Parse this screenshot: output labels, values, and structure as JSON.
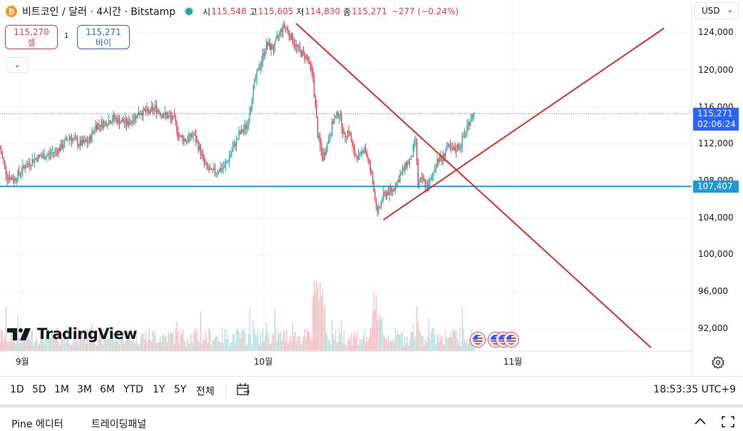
{
  "header": {
    "btc_glyph": "₿",
    "symbol_title": "비트코인 / 달러 · 4시간 · Bitstamp",
    "ohlc": [
      {
        "label": "시",
        "value": "115,548"
      },
      {
        "label": "고",
        "value": "115,605"
      },
      {
        "label": "저",
        "value": "114,830"
      },
      {
        "label": "종",
        "value": "115,271"
      }
    ],
    "change": "−277 (−0.24%)",
    "live_color": "#26a69a"
  },
  "trade": {
    "sell_price": "115,270",
    "sell_label": "셀",
    "quantity": "1",
    "buy_price": "115,271",
    "buy_label": "바이",
    "collapse_glyph": "⌄"
  },
  "currency": {
    "value": "USD",
    "chevron": "⌄"
  },
  "price_axis": {
    "labels": [
      "124,000",
      "120,000",
      "116,000",
      "112,000",
      "108,000",
      "104,000",
      "100,000",
      "96,000",
      "92,000"
    ],
    "current_price": "115,271",
    "countdown": "02:06:24",
    "horizontal_line_price": "107,407",
    "current_tag_color": "#2962ff",
    "hline_color": "#1e9bd7"
  },
  "time_axis": {
    "labels": [
      "9월",
      "10월",
      "11월"
    ]
  },
  "branding": {
    "logo_text": "TradingView"
  },
  "range_bar": {
    "ranges": [
      "1D",
      "5D",
      "1M",
      "3M",
      "6M",
      "YTD",
      "1Y",
      "5Y",
      "전체"
    ],
    "clock": "18:53:35 UTC+9"
  },
  "bottom_panel": {
    "tabs": [
      "Pine 에디터",
      "트레이딩패널"
    ]
  },
  "colors": {
    "up": "#26a69a",
    "down": "#f23645",
    "trendline": "#d32f2f",
    "grid": "#f0f3fa"
  },
  "chart_data": {
    "type": "candlestick",
    "symbol": "비트코인 / 달러",
    "interval": "4시간",
    "exchange": "Bitstamp",
    "ylim": [
      90000,
      125500
    ],
    "x_months": [
      "9월",
      "10월",
      "11월"
    ],
    "close_path": [
      [
        0,
        111500
      ],
      [
        6,
        108500
      ],
      [
        12,
        108200
      ],
      [
        20,
        109500
      ],
      [
        30,
        110500
      ],
      [
        40,
        110800
      ],
      [
        50,
        111500
      ],
      [
        58,
        112800
      ],
      [
        66,
        112000
      ],
      [
        74,
        112200
      ],
      [
        80,
        114000
      ],
      [
        88,
        114300
      ],
      [
        95,
        114800
      ],
      [
        100,
        114500
      ],
      [
        107,
        114200
      ],
      [
        113,
        115000
      ],
      [
        118,
        115500
      ],
      [
        124,
        115400
      ],
      [
        130,
        115900
      ],
      [
        136,
        115200
      ],
      [
        140,
        115000
      ],
      [
        146,
        114600
      ],
      [
        150,
        112800
      ],
      [
        156,
        112400
      ],
      [
        162,
        113000
      ],
      [
        167,
        111500
      ],
      [
        172,
        109600
      ],
      [
        177,
        108900
      ],
      [
        183,
        109200
      ],
      [
        188,
        109500
      ],
      [
        195,
        111500
      ],
      [
        200,
        113000
      ],
      [
        207,
        114000
      ],
      [
        212,
        118000
      ],
      [
        217,
        120300
      ],
      [
        223,
        122700
      ],
      [
        229,
        122300
      ],
      [
        234,
        124000
      ],
      [
        238,
        124800
      ],
      [
        243,
        123700
      ],
      [
        248,
        122500
      ],
      [
        252,
        121800
      ],
      [
        257,
        121400
      ],
      [
        262,
        119200
      ],
      [
        266,
        113000
      ],
      [
        270,
        110500
      ],
      [
        274,
        112000
      ],
      [
        279,
        114500
      ],
      [
        284,
        115400
      ],
      [
        288,
        112800
      ],
      [
        292,
        113500
      ],
      [
        296,
        111000
      ],
      [
        301,
        110500
      ],
      [
        305,
        111800
      ],
      [
        310,
        109200
      ],
      [
        313,
        107200
      ],
      [
        316,
        104300
      ],
      [
        320,
        106200
      ],
      [
        324,
        106800
      ],
      [
        328,
        106900
      ],
      [
        332,
        107800
      ],
      [
        336,
        108800
      ],
      [
        340,
        109800
      ],
      [
        344,
        110300
      ],
      [
        348,
        112500
      ],
      [
        350,
        107600
      ],
      [
        354,
        108100
      ],
      [
        358,
        107200
      ],
      [
        362,
        108600
      ],
      [
        366,
        110400
      ],
      [
        370,
        110300
      ],
      [
        374,
        111700
      ],
      [
        378,
        111200
      ],
      [
        382,
        111500
      ],
      [
        386,
        112000
      ],
      [
        390,
        113500
      ],
      [
        394,
        114800
      ],
      [
        397,
        115271
      ]
    ],
    "drawings": {
      "horizontal_line": {
        "price": 107407
      },
      "trend_lines": [
        {
          "from": [
            "bar 248",
            125000
          ],
          "to": [
            "bar 545",
            90000
          ]
        },
        {
          "from": [
            "bar 321",
            103800
          ],
          "to": [
            "bar 556",
            124500
          ]
        }
      ]
    }
  }
}
